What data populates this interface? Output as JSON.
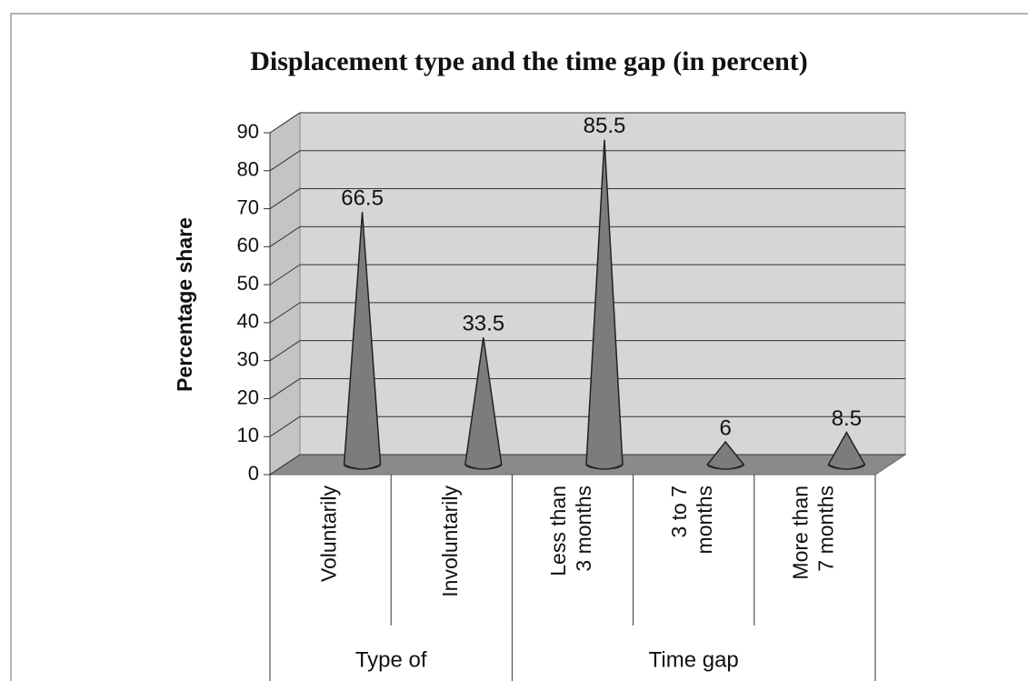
{
  "chart_data": {
    "type": "cone",
    "title": "Displacement type and the time gap (in percent)",
    "y_label": "Percentage share",
    "categories": [
      "Voluntarily",
      "Involuntarily",
      "Less than\n3 months",
      "3 to 7\nmonths",
      "More than\n7 months"
    ],
    "values": [
      66.5,
      33.5,
      85.5,
      6,
      8.5
    ],
    "groups": [
      {
        "label": "Type of",
        "size": 2
      },
      {
        "label": "Time gap",
        "size": 3
      }
    ],
    "color": "#7c7c7c",
    "ylim": [
      0,
      90
    ],
    "yticks": [
      0,
      10,
      20,
      30,
      40,
      50,
      60,
      70,
      80,
      90
    ],
    "grid": true
  }
}
